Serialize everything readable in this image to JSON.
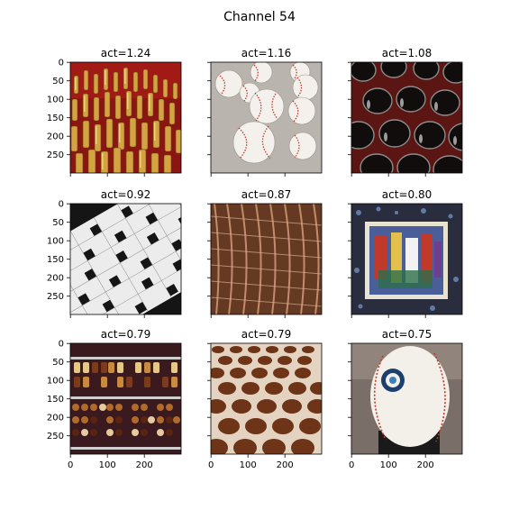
{
  "figure": {
    "title": "Channel 54"
  },
  "chart_data": {
    "type": "image_grid",
    "title": "Channel 54",
    "rows": 3,
    "cols": 3,
    "image_extent": [
      0,
      300
    ],
    "y_ticks": [
      0,
      50,
      100,
      150,
      200,
      250
    ],
    "x_ticks": [
      0,
      100,
      200
    ],
    "panels": [
      {
        "label": "act=1.24",
        "act": 1.24,
        "content": "brass bullet cartridges on red",
        "colors": [
          "#8a1512",
          "#c89a3a",
          "#f0d27a",
          "#5a3a10"
        ]
      },
      {
        "label": "act=1.16",
        "act": 1.16,
        "content": "pile of baseballs",
        "colors": [
          "#b9b5ae",
          "#f4f1ec",
          "#c43a2c",
          "#6e6a64"
        ]
      },
      {
        "label": "act=1.08",
        "act": 1.08,
        "content": "wine bottles in red rack",
        "colors": [
          "#141010",
          "#5b1512",
          "#9a9a9a",
          "#2a0c0a"
        ]
      },
      {
        "label": "act=0.92",
        "act": 0.92,
        "content": "crossword puzzle grid",
        "colors": [
          "#ececec",
          "#151515",
          "#8d8d8d"
        ]
      },
      {
        "label": "act=0.87",
        "act": 0.87,
        "content": "copper coil springs",
        "colors": [
          "#7a4a2e",
          "#d9a27a",
          "#3a1e12",
          "#f2c8a4"
        ]
      },
      {
        "label": "act=0.80",
        "act": 0.8,
        "content": "colorful jigsaw puzzle",
        "colors": [
          "#2a2d3e",
          "#5e7fae",
          "#c0392b",
          "#e3c04b"
        ]
      },
      {
        "label": "act=0.79",
        "act": 0.79,
        "content": "chocolates in display case",
        "colors": [
          "#3a1a1e",
          "#c78a3e",
          "#7a3c1c",
          "#e8c9a0"
        ]
      },
      {
        "label": "act=0.79",
        "act": 0.79,
        "content": "hexagonal mesh",
        "colors": [
          "#5a2a12",
          "#f1e6d8",
          "#8a4a22"
        ]
      },
      {
        "label": "act=0.75",
        "act": 0.75,
        "content": "baseball close-up",
        "colors": [
          "#7a6e68",
          "#f3efe9",
          "#c0392b",
          "#1d3f6e"
        ]
      }
    ]
  }
}
